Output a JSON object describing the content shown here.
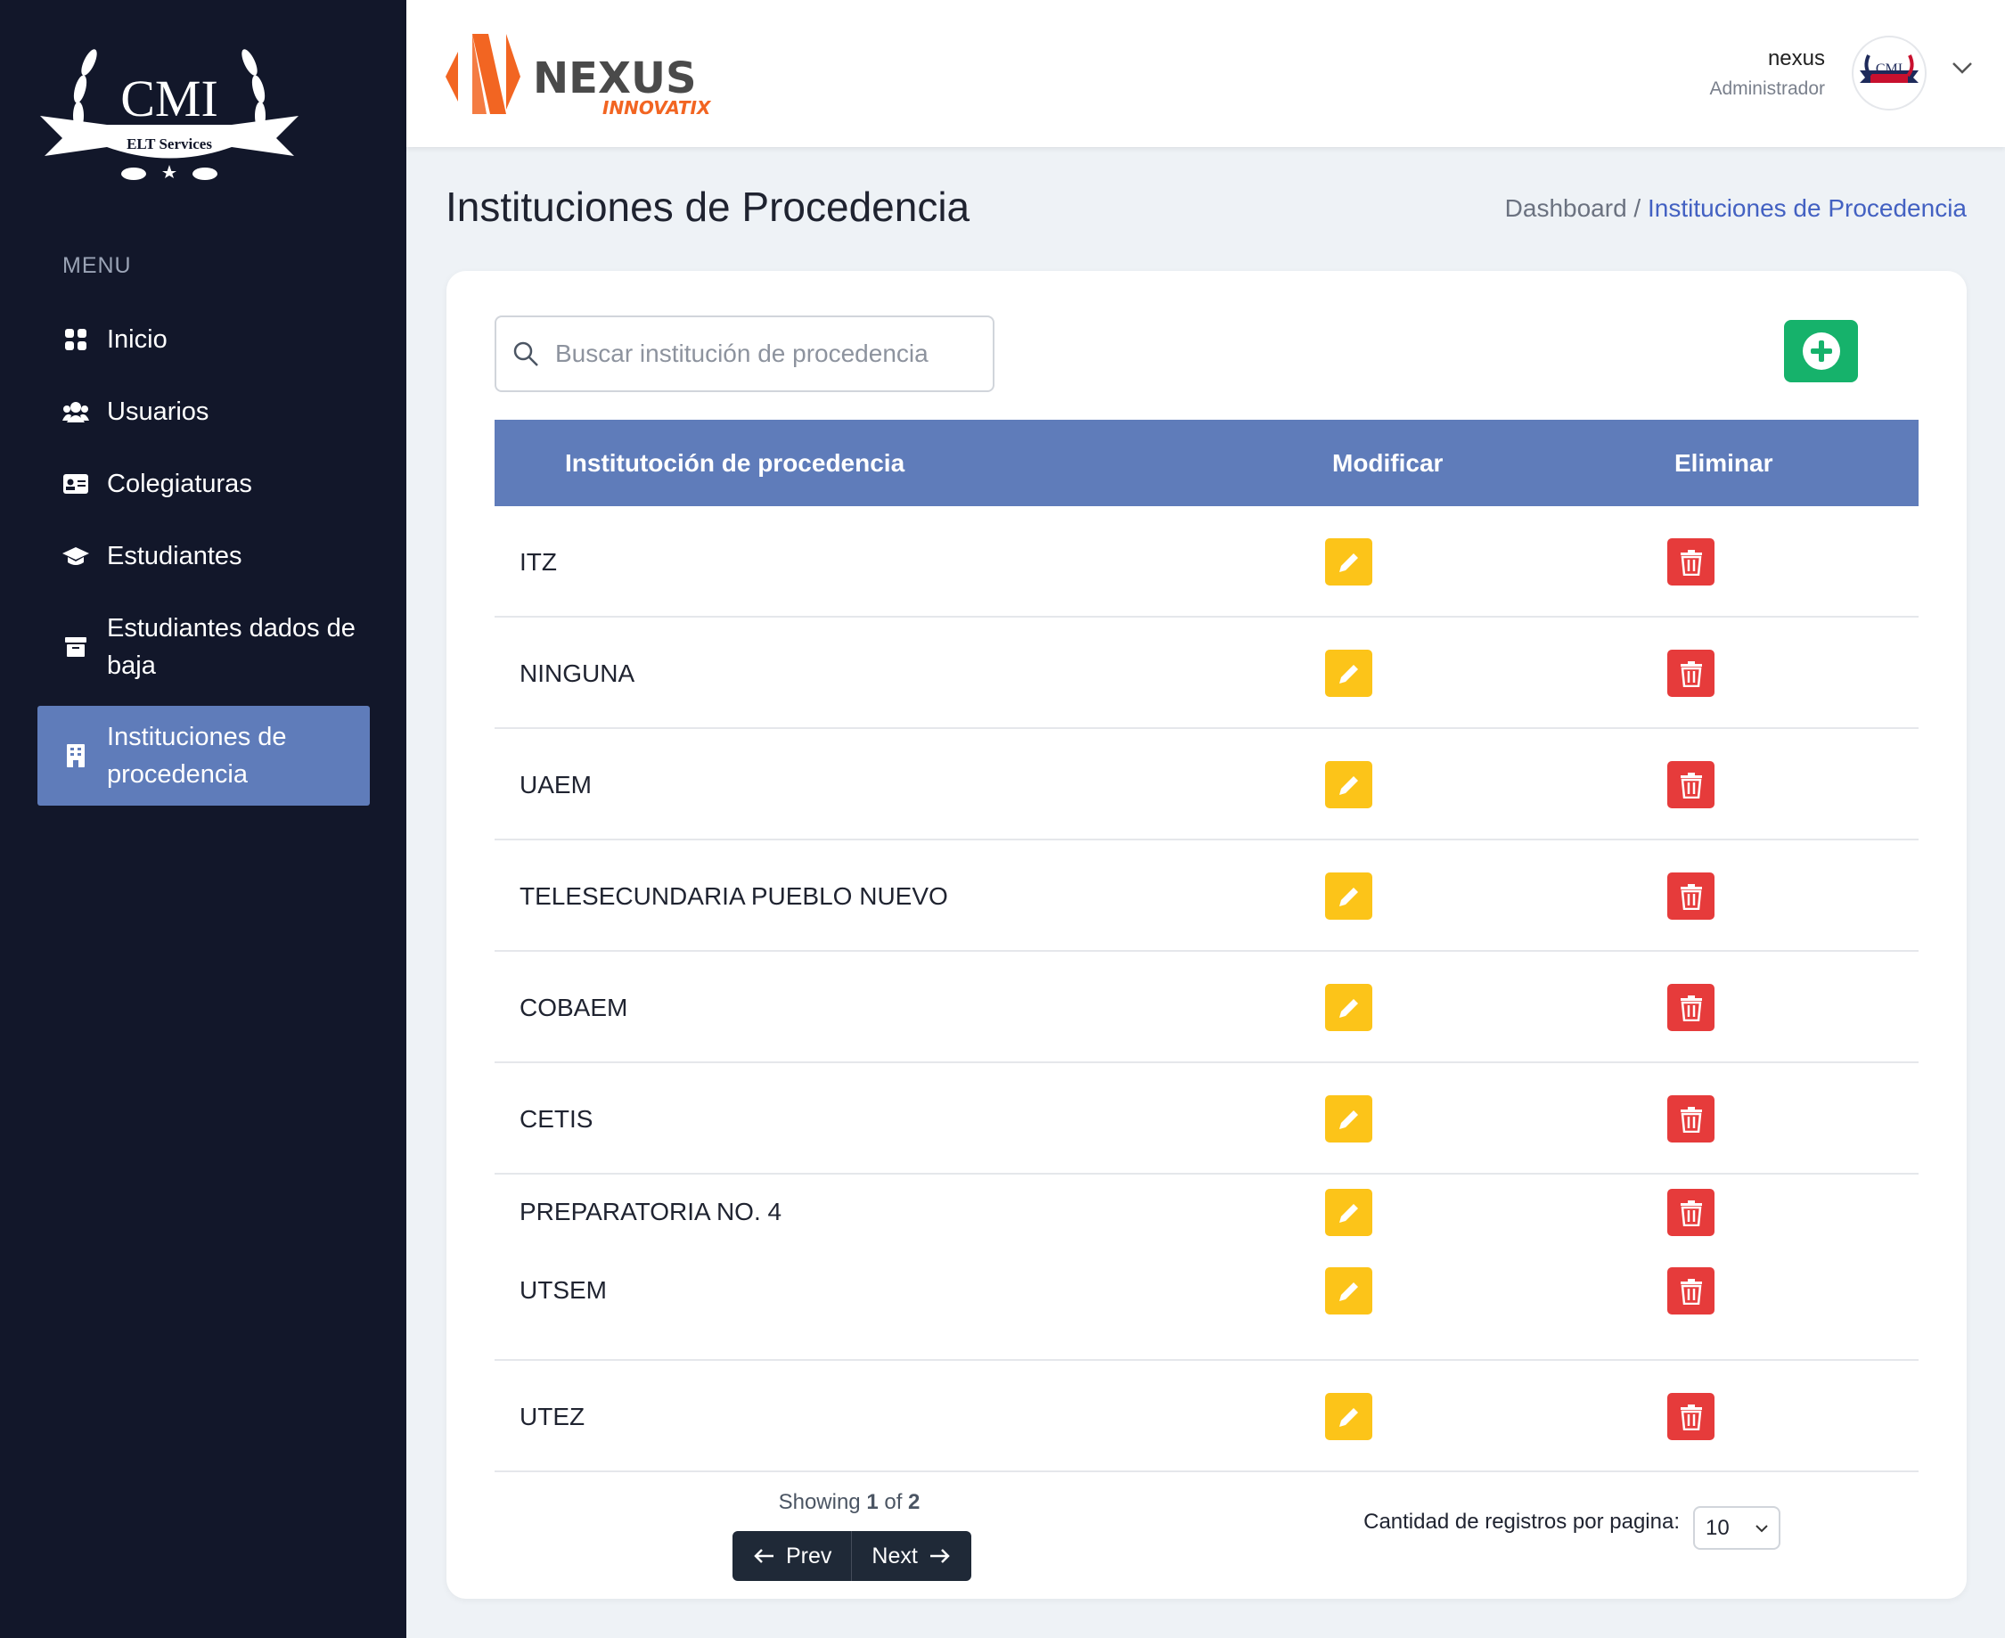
{
  "sidebar": {
    "logo_text": "CMI",
    "logo_sub": "ELT Services",
    "menu_label": "MENU",
    "items": [
      {
        "label": "Inicio",
        "icon": "grid-icon"
      },
      {
        "label": "Usuarios",
        "icon": "users-icon"
      },
      {
        "label": "Colegiaturas",
        "icon": "id-card-icon"
      },
      {
        "label": "Estudiantes",
        "icon": "graduation-cap-icon"
      },
      {
        "label": "Estudiantes dados de baja",
        "icon": "archive-icon"
      },
      {
        "label": "Instituciones de procedencia",
        "icon": "building-icon",
        "active": true
      }
    ]
  },
  "header": {
    "brand": "NEXUS",
    "brand_sub": "INNOVATIX",
    "user_name": "nexus",
    "user_role": "Administrador"
  },
  "page": {
    "title": "Instituciones de Procedencia",
    "breadcrumb": [
      "Dashboard /",
      "Instituciones de Procedencia"
    ]
  },
  "search": {
    "placeholder": "Buscar institución de procedencia",
    "value": ""
  },
  "table": {
    "headers": [
      "Institutoción de procedencia",
      "Modificar",
      "Eliminar"
    ],
    "rows": [
      "ITZ",
      "NINGUNA",
      "UAEM",
      "TELESECUNDARIA PUEBLO NUEVO",
      "COBAEM",
      "CETIS",
      "PREPARATORIA NO. 4",
      "UTSEM",
      "UTEZ"
    ]
  },
  "pagination": {
    "showing": "Showing",
    "current": "1",
    "of": "of",
    "total": "2",
    "prev": "Prev",
    "next": "Next",
    "per_page_label": "Cantidad de registros por pagina:",
    "per_page": "10"
  },
  "colors": {
    "sidebar": "#12172a",
    "accent": "#5f7cba",
    "edit": "#fcc419",
    "delete": "#e63b3b",
    "add": "#16b26b",
    "brand": "#f26522"
  }
}
